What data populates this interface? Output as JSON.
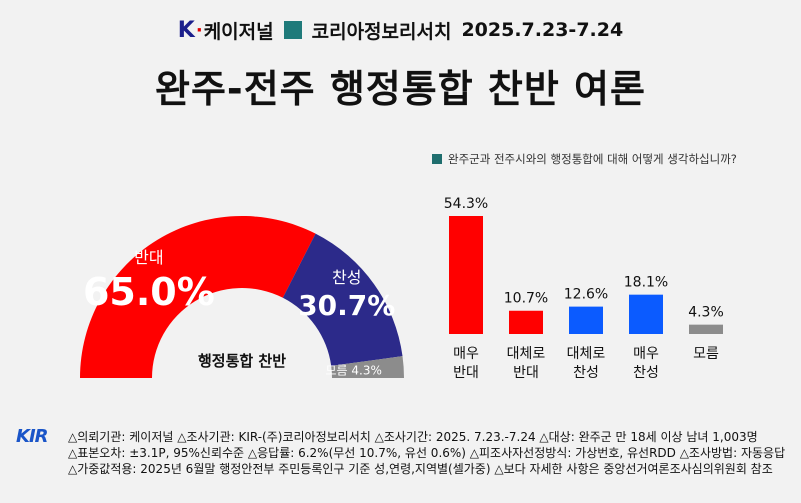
{
  "header": {
    "logo_k": "K",
    "logo_word": "케이저널",
    "pollster": "코리아정보리서치",
    "dates": "2025.7.23-7.24"
  },
  "title": "완주-전주 행정통합 찬반 여론",
  "question": "완주군과 전주시와의 행정통합에 대해 어떻게 생각하십니까?",
  "colors": {
    "red": "#ff0000",
    "navy": "#2c2a8a",
    "blue": "#0b5bff",
    "gray": "#8c8c8c",
    "teal": "#1f7a7a"
  },
  "chart_data": [
    {
      "type": "pie",
      "variant": "half-donut",
      "center_label": "행정통합 찬반",
      "slices": [
        {
          "name": "반대",
          "value": 65.0,
          "label": "65.0%",
          "color": "#ff0000"
        },
        {
          "name": "찬성",
          "value": 30.7,
          "label": "30.7%",
          "color": "#2c2a8a"
        },
        {
          "name": "모름",
          "value": 4.3,
          "label": "4.3%",
          "color": "#8c8c8c"
        }
      ]
    },
    {
      "type": "bar",
      "categories": [
        {
          "line1": "매우",
          "line2": "반대"
        },
        {
          "line1": "대체로",
          "line2": "반대"
        },
        {
          "line1": "대체로",
          "line2": "찬성"
        },
        {
          "line1": "매우",
          "line2": "찬성"
        },
        {
          "line1": "모름",
          "line2": ""
        }
      ],
      "values": [
        54.3,
        10.7,
        12.6,
        18.1,
        4.3
      ],
      "value_labels": [
        "54.3%",
        "10.7%",
        "12.6%",
        "18.1%",
        "4.3%"
      ],
      "colors": [
        "#ff0000",
        "#ff0000",
        "#0b5bff",
        "#0b5bff",
        "#8c8c8c"
      ],
      "ylim": [
        0,
        60
      ],
      "grid": false
    }
  ],
  "footer": {
    "logo": "KIR",
    "line1": "△의뢰기관: 케이저널 △조사기관: KIR-(주)코리아정보리서치 △조사기간: 2025. 7.23.-7.24 △대상: 완주군 만 18세 이상 남녀 1,003명",
    "line2": "△표본오차: ±3.1P, 95%신뢰수준 △응답률: 6.2%(무선 10.7%, 유선 0.6%) △피조사자선정방식: 가상번호, 유선RDD △조사방법: 자동응답",
    "line3": "△가중값적용: 2025년 6월말 행정안전부 주민등록인구 기준 성,연령,지역별(셀가중) △보다 자세한 사항은 중앙선거여론조사심의위원회 참조"
  }
}
